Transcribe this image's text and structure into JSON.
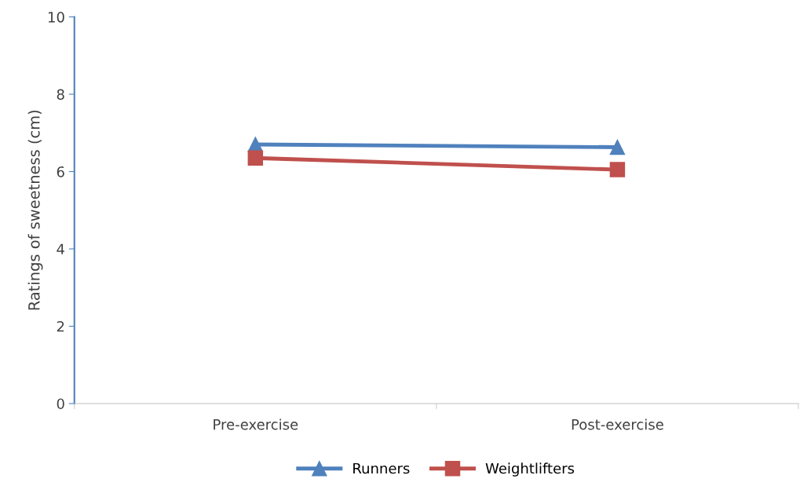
{
  "chart_data": {
    "type": "line",
    "ylabel": "Ratings of sweetness (cm)",
    "categories": [
      "Pre-exercise",
      "Post-exercise"
    ],
    "series": [
      {
        "name": "Runners",
        "color": "#4f81bd",
        "values": [
          6.7,
          6.63
        ],
        "marker": "triangle"
      },
      {
        "name": "Weightlifters",
        "color": "#c0504d",
        "values": [
          6.35,
          6.05
        ],
        "marker": "square"
      }
    ],
    "ylim": [
      0,
      10
    ],
    "yticks": [
      0,
      2,
      4,
      6,
      8,
      10
    ],
    "grid": false,
    "legend": "bottom",
    "line_style": "solid"
  }
}
